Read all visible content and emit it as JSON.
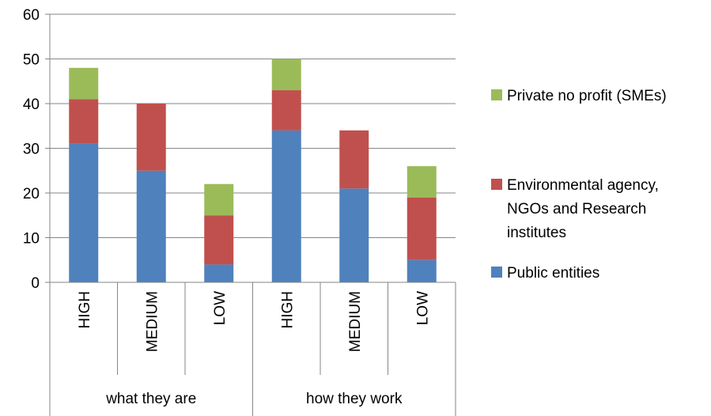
{
  "chart_data": {
    "type": "bar",
    "stacked": true,
    "categories": [
      "HIGH",
      "MEDIUM",
      "LOW",
      "HIGH",
      "MEDIUM",
      "LOW"
    ],
    "groups": [
      {
        "label": "what they are",
        "span": [
          0,
          2
        ]
      },
      {
        "label": "how they work",
        "span": [
          3,
          5
        ]
      }
    ],
    "series": [
      {
        "name": "Public entities",
        "color": "#4F81BD",
        "values": [
          31,
          25,
          4,
          34,
          21,
          5
        ]
      },
      {
        "name": "Environmental agency, NGOs and Research institutes",
        "legend_lines": [
          "Environmental agency,",
          "NGOs and Research",
          "institutes"
        ],
        "color": "#C0504D",
        "values": [
          10,
          15,
          11,
          9,
          13,
          14
        ]
      },
      {
        "name": "Private no profit (SMEs)",
        "color": "#9BBB59",
        "values": [
          7,
          0,
          7,
          7,
          0,
          7
        ]
      }
    ],
    "ylim": [
      0,
      60
    ],
    "yticks": [
      0,
      10,
      20,
      30,
      40,
      50,
      60
    ],
    "grid": true,
    "legend_position": "right",
    "title": "",
    "xlabel": "",
    "ylabel": ""
  }
}
